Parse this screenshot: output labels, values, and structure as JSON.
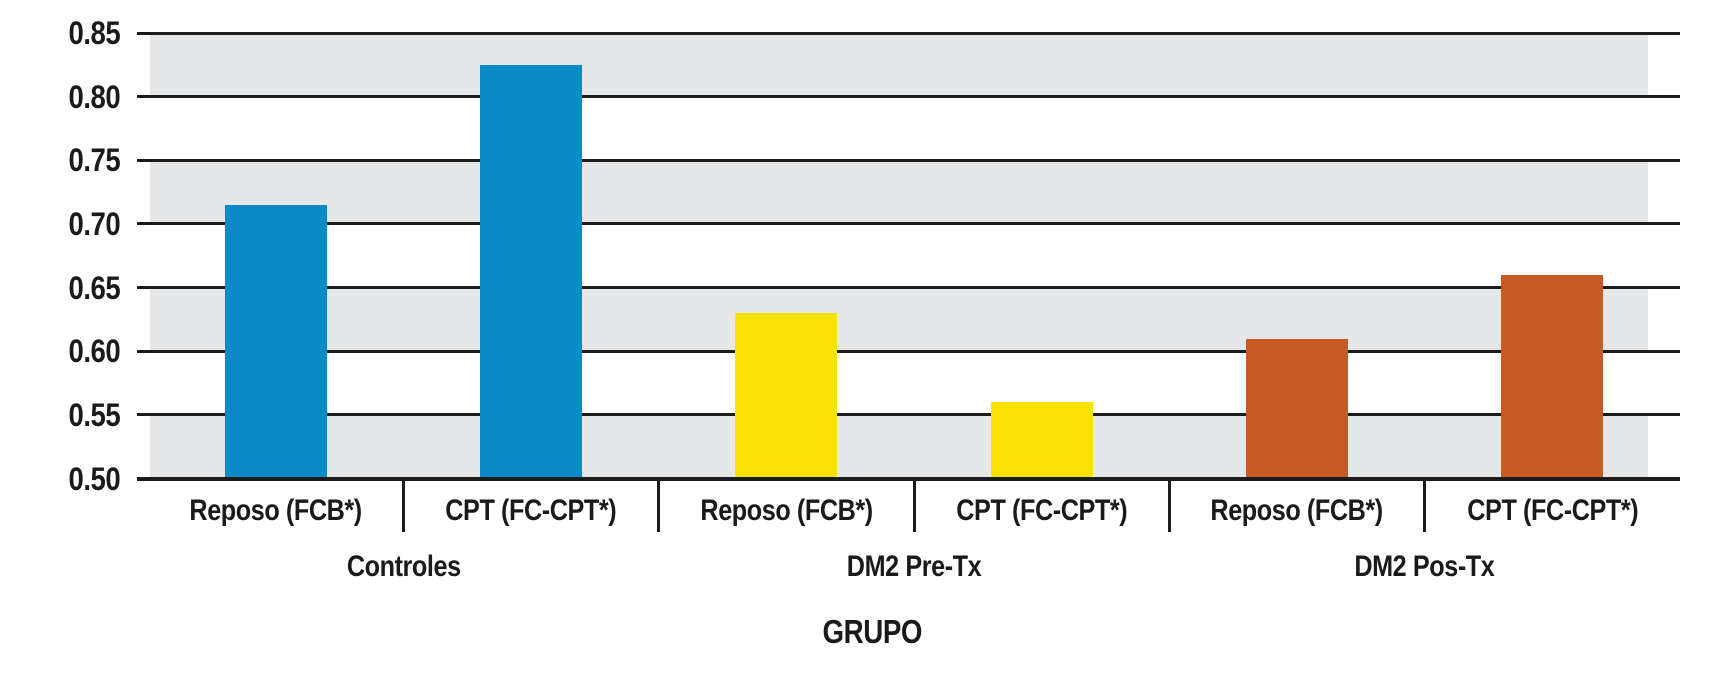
{
  "chart_data": {
    "type": "bar",
    "title": "",
    "xlabel": "GRUPO",
    "ylabel": "",
    "ylim": [
      0.5,
      0.85
    ],
    "ytick_step": 0.05,
    "ytick_labels": [
      "0.85",
      "0.80",
      "0.75",
      "0.70",
      "0.65",
      "0.60",
      "0.55",
      "0.50"
    ],
    "grid": "horizontal-only",
    "legend_position": "none",
    "plot_band_colors": [
      "#e6e7e8",
      "#ffffff"
    ],
    "gridline_color": "#1b1b1b",
    "categories_per_group": [
      "Reposo (FCB*)",
      "CPT (FC-CPT*)"
    ],
    "groups": [
      {
        "label": "Controles",
        "color": "#0a89c7",
        "categories": [
          "Reposo (FCB*)",
          "CPT (FC-CPT*)"
        ],
        "values": [
          0.715,
          0.825
        ]
      },
      {
        "label": "DM2 Pre-Tx",
        "color": "#f8e105",
        "categories": [
          "Reposo (FCB*)",
          "CPT (FC-CPT*)"
        ],
        "values": [
          0.63,
          0.56
        ]
      },
      {
        "label": "DM2 Pos-Tx",
        "color": "#c75b23",
        "categories": [
          "Reposo (FCB*)",
          "CPT (FC-CPT*)"
        ],
        "values": [
          0.61,
          0.66
        ]
      }
    ]
  }
}
